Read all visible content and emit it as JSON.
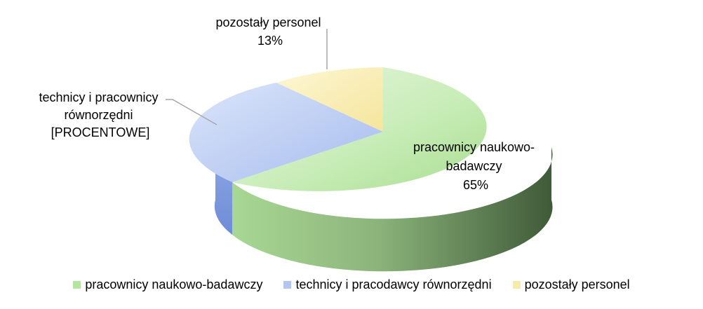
{
  "chart_data": {
    "type": "pie",
    "style": "3d-exploded-view",
    "slices": [
      {
        "name": "pracownicy naukowo-badawczy",
        "value": 65,
        "label_lines": [
          "pracownicy naukowo-",
          "badawczy",
          "65%"
        ],
        "color": "#b5e6a1",
        "legend": "pracownicy naukowo-badawczy"
      },
      {
        "name": "technicy i pracownicy równorzędni",
        "value": 22,
        "label_lines": [
          "technicy i pracownicy",
          "równorzędni",
          "[PROCENTOWE]"
        ],
        "color": "#b3c6f0",
        "legend": "technicy i pracodawcy równorzędni"
      },
      {
        "name": "pozostały personel",
        "value": 13,
        "label_lines": [
          "pozostały personel",
          "13%"
        ],
        "color": "#f7eba8",
        "legend": "pozostały personel"
      }
    ],
    "legend_position": "bottom"
  }
}
